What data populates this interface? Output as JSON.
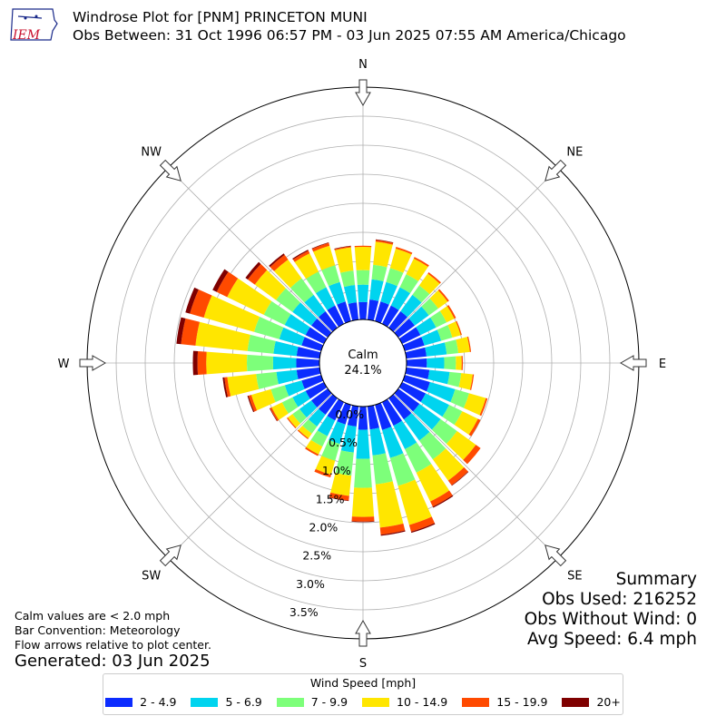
{
  "header": {
    "logo_text": "IEM",
    "title": "Windrose Plot for [PNM] PRINCETON MUNI",
    "subtitle": "Obs Between: 31 Oct 1996 06:57 PM - 03 Jun 2025 07:55 AM America/Chicago"
  },
  "notes": {
    "calm_def": "Calm values are < 2.0 mph",
    "bar_convention": "Bar Convention: Meteorology",
    "flow_arrows": "Flow arrows relative to plot center.",
    "generated": "Generated: 03 Jun 2025"
  },
  "summary": {
    "heading": "Summary",
    "obs_used": "Obs Used: 216252",
    "obs_without_wind": "Obs Without Wind: 0",
    "avg_speed": "Avg Speed: 6.4 mph"
  },
  "chart_data": {
    "type": "windrose",
    "calm_label": "Calm",
    "calm_value": "24.1%",
    "radial_unit": "%",
    "radial_ticks": [
      0.0,
      0.5,
      1.0,
      1.5,
      2.0,
      2.5,
      3.0,
      3.5
    ],
    "radial_max": 4.0,
    "direction_labels": [
      "N",
      "NE",
      "E",
      "SE",
      "S",
      "SW",
      "W",
      "NW"
    ],
    "direction_colors": {
      "arrow_fill": "#ffffff"
    },
    "legend_title": "Wind Speed [mph]",
    "bins": [
      {
        "label": "2 - 4.9",
        "color": "#0c2cff"
      },
      {
        "label": "5 - 6.9",
        "color": "#00d4ef"
      },
      {
        "label": "7 - 9.9",
        "color": "#7dff7a"
      },
      {
        "label": "10 - 14.9",
        "color": "#ffe600"
      },
      {
        "label": "15 - 19.9",
        "color": "#ff4a00"
      },
      {
        "label": "20+",
        "color": "#7f0000"
      }
    ],
    "sectors": [
      {
        "dir": 0,
        "values": [
          0.3,
          0.3,
          0.25,
          0.4,
          0.02,
          0.0
        ]
      },
      {
        "dir": 10,
        "values": [
          0.35,
          0.35,
          0.25,
          0.4,
          0.03,
          0.01
        ]
      },
      {
        "dir": 20,
        "values": [
          0.35,
          0.35,
          0.25,
          0.35,
          0.03,
          0.0
        ]
      },
      {
        "dir": 30,
        "values": [
          0.35,
          0.35,
          0.25,
          0.3,
          0.03,
          0.0
        ]
      },
      {
        "dir": 40,
        "values": [
          0.35,
          0.35,
          0.2,
          0.25,
          0.03,
          0.0
        ]
      },
      {
        "dir": 50,
        "values": [
          0.35,
          0.3,
          0.2,
          0.2,
          0.03,
          0.0
        ]
      },
      {
        "dir": 60,
        "values": [
          0.35,
          0.3,
          0.2,
          0.15,
          0.03,
          0.0
        ]
      },
      {
        "dir": 70,
        "values": [
          0.35,
          0.3,
          0.2,
          0.15,
          0.02,
          0.0
        ]
      },
      {
        "dir": 80,
        "values": [
          0.35,
          0.35,
          0.2,
          0.2,
          0.02,
          0.0
        ]
      },
      {
        "dir": 90,
        "values": [
          0.35,
          0.3,
          0.2,
          0.1,
          0.02,
          0.0
        ]
      },
      {
        "dir": 100,
        "values": [
          0.4,
          0.35,
          0.2,
          0.2,
          0.02,
          0.0
        ]
      },
      {
        "dir": 110,
        "values": [
          0.45,
          0.45,
          0.25,
          0.3,
          0.03,
          0.0
        ]
      },
      {
        "dir": 120,
        "values": [
          0.45,
          0.45,
          0.25,
          0.3,
          0.05,
          0.0
        ]
      },
      {
        "dir": 130,
        "values": [
          0.45,
          0.45,
          0.35,
          0.4,
          0.1,
          0.0
        ]
      },
      {
        "dir": 140,
        "values": [
          0.45,
          0.45,
          0.4,
          0.45,
          0.1,
          0.01
        ]
      },
      {
        "dir": 150,
        "values": [
          0.45,
          0.45,
          0.45,
          0.55,
          0.1,
          0.02
        ]
      },
      {
        "dir": 160,
        "values": [
          0.45,
          0.5,
          0.5,
          0.7,
          0.12,
          0.02
        ]
      },
      {
        "dir": 170,
        "values": [
          0.4,
          0.45,
          0.5,
          0.75,
          0.12,
          0.02
        ]
      },
      {
        "dir": 180,
        "values": [
          0.4,
          0.5,
          0.5,
          0.5,
          0.08,
          0.01
        ]
      },
      {
        "dir": 190,
        "values": [
          0.35,
          0.45,
          0.4,
          0.35,
          0.08,
          0.01
        ]
      },
      {
        "dir": 200,
        "values": [
          0.35,
          0.35,
          0.3,
          0.25,
          0.05,
          0.0
        ]
      },
      {
        "dir": 210,
        "values": [
          0.35,
          0.3,
          0.2,
          0.15,
          0.03,
          0.0
        ]
      },
      {
        "dir": 220,
        "values": [
          0.35,
          0.25,
          0.15,
          0.1,
          0.02,
          0.0
        ]
      },
      {
        "dir": 230,
        "values": [
          0.35,
          0.25,
          0.15,
          0.1,
          0.02,
          0.0
        ]
      },
      {
        "dir": 240,
        "values": [
          0.35,
          0.25,
          0.2,
          0.2,
          0.03,
          0.01
        ]
      },
      {
        "dir": 250,
        "values": [
          0.35,
          0.3,
          0.25,
          0.35,
          0.05,
          0.02
        ]
      },
      {
        "dir": 260,
        "values": [
          0.4,
          0.35,
          0.35,
          0.5,
          0.05,
          0.03
        ]
      },
      {
        "dir": 270,
        "values": [
          0.4,
          0.4,
          0.45,
          0.7,
          0.15,
          0.08
        ]
      },
      {
        "dir": 280,
        "values": [
          0.4,
          0.4,
          0.45,
          0.9,
          0.25,
          0.08
        ]
      },
      {
        "dir": 290,
        "values": [
          0.35,
          0.4,
          0.45,
          0.9,
          0.25,
          0.08
        ]
      },
      {
        "dir": 300,
        "values": [
          0.35,
          0.4,
          0.4,
          0.7,
          0.2,
          0.08
        ]
      },
      {
        "dir": 310,
        "values": [
          0.35,
          0.4,
          0.35,
          0.45,
          0.15,
          0.05
        ]
      },
      {
        "dir": 320,
        "values": [
          0.35,
          0.35,
          0.35,
          0.4,
          0.1,
          0.03
        ]
      },
      {
        "dir": 330,
        "values": [
          0.35,
          0.35,
          0.3,
          0.35,
          0.05,
          0.02
        ]
      },
      {
        "dir": 340,
        "values": [
          0.35,
          0.35,
          0.3,
          0.35,
          0.05,
          0.01
        ]
      },
      {
        "dir": 350,
        "values": [
          0.3,
          0.3,
          0.25,
          0.4,
          0.02,
          0.01
        ]
      }
    ]
  }
}
